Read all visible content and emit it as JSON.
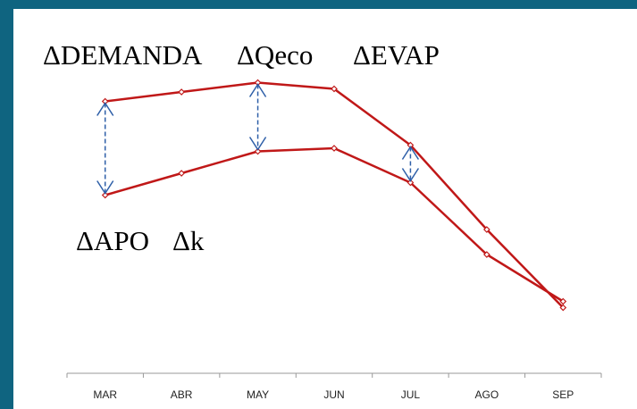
{
  "chart_data": {
    "type": "line",
    "categories": [
      "MAR",
      "ABR",
      "MAY",
      "JUN",
      "JUL",
      "AGO",
      "SEP"
    ],
    "series": [
      {
        "color": "#c01818",
        "values": [
          87,
          90,
          93,
          91,
          73,
          46,
          21
        ]
      },
      {
        "color": "#c01818",
        "values": [
          57,
          64,
          71,
          72,
          61,
          38,
          23
        ]
      }
    ],
    "ylim": [
      0,
      100
    ],
    "annotations": [
      "ΔDEMANDA",
      "ΔQeco",
      "ΔEVAP",
      "ΔAPO",
      "Δk"
    ],
    "arrow_color": "#2e5fa8"
  }
}
